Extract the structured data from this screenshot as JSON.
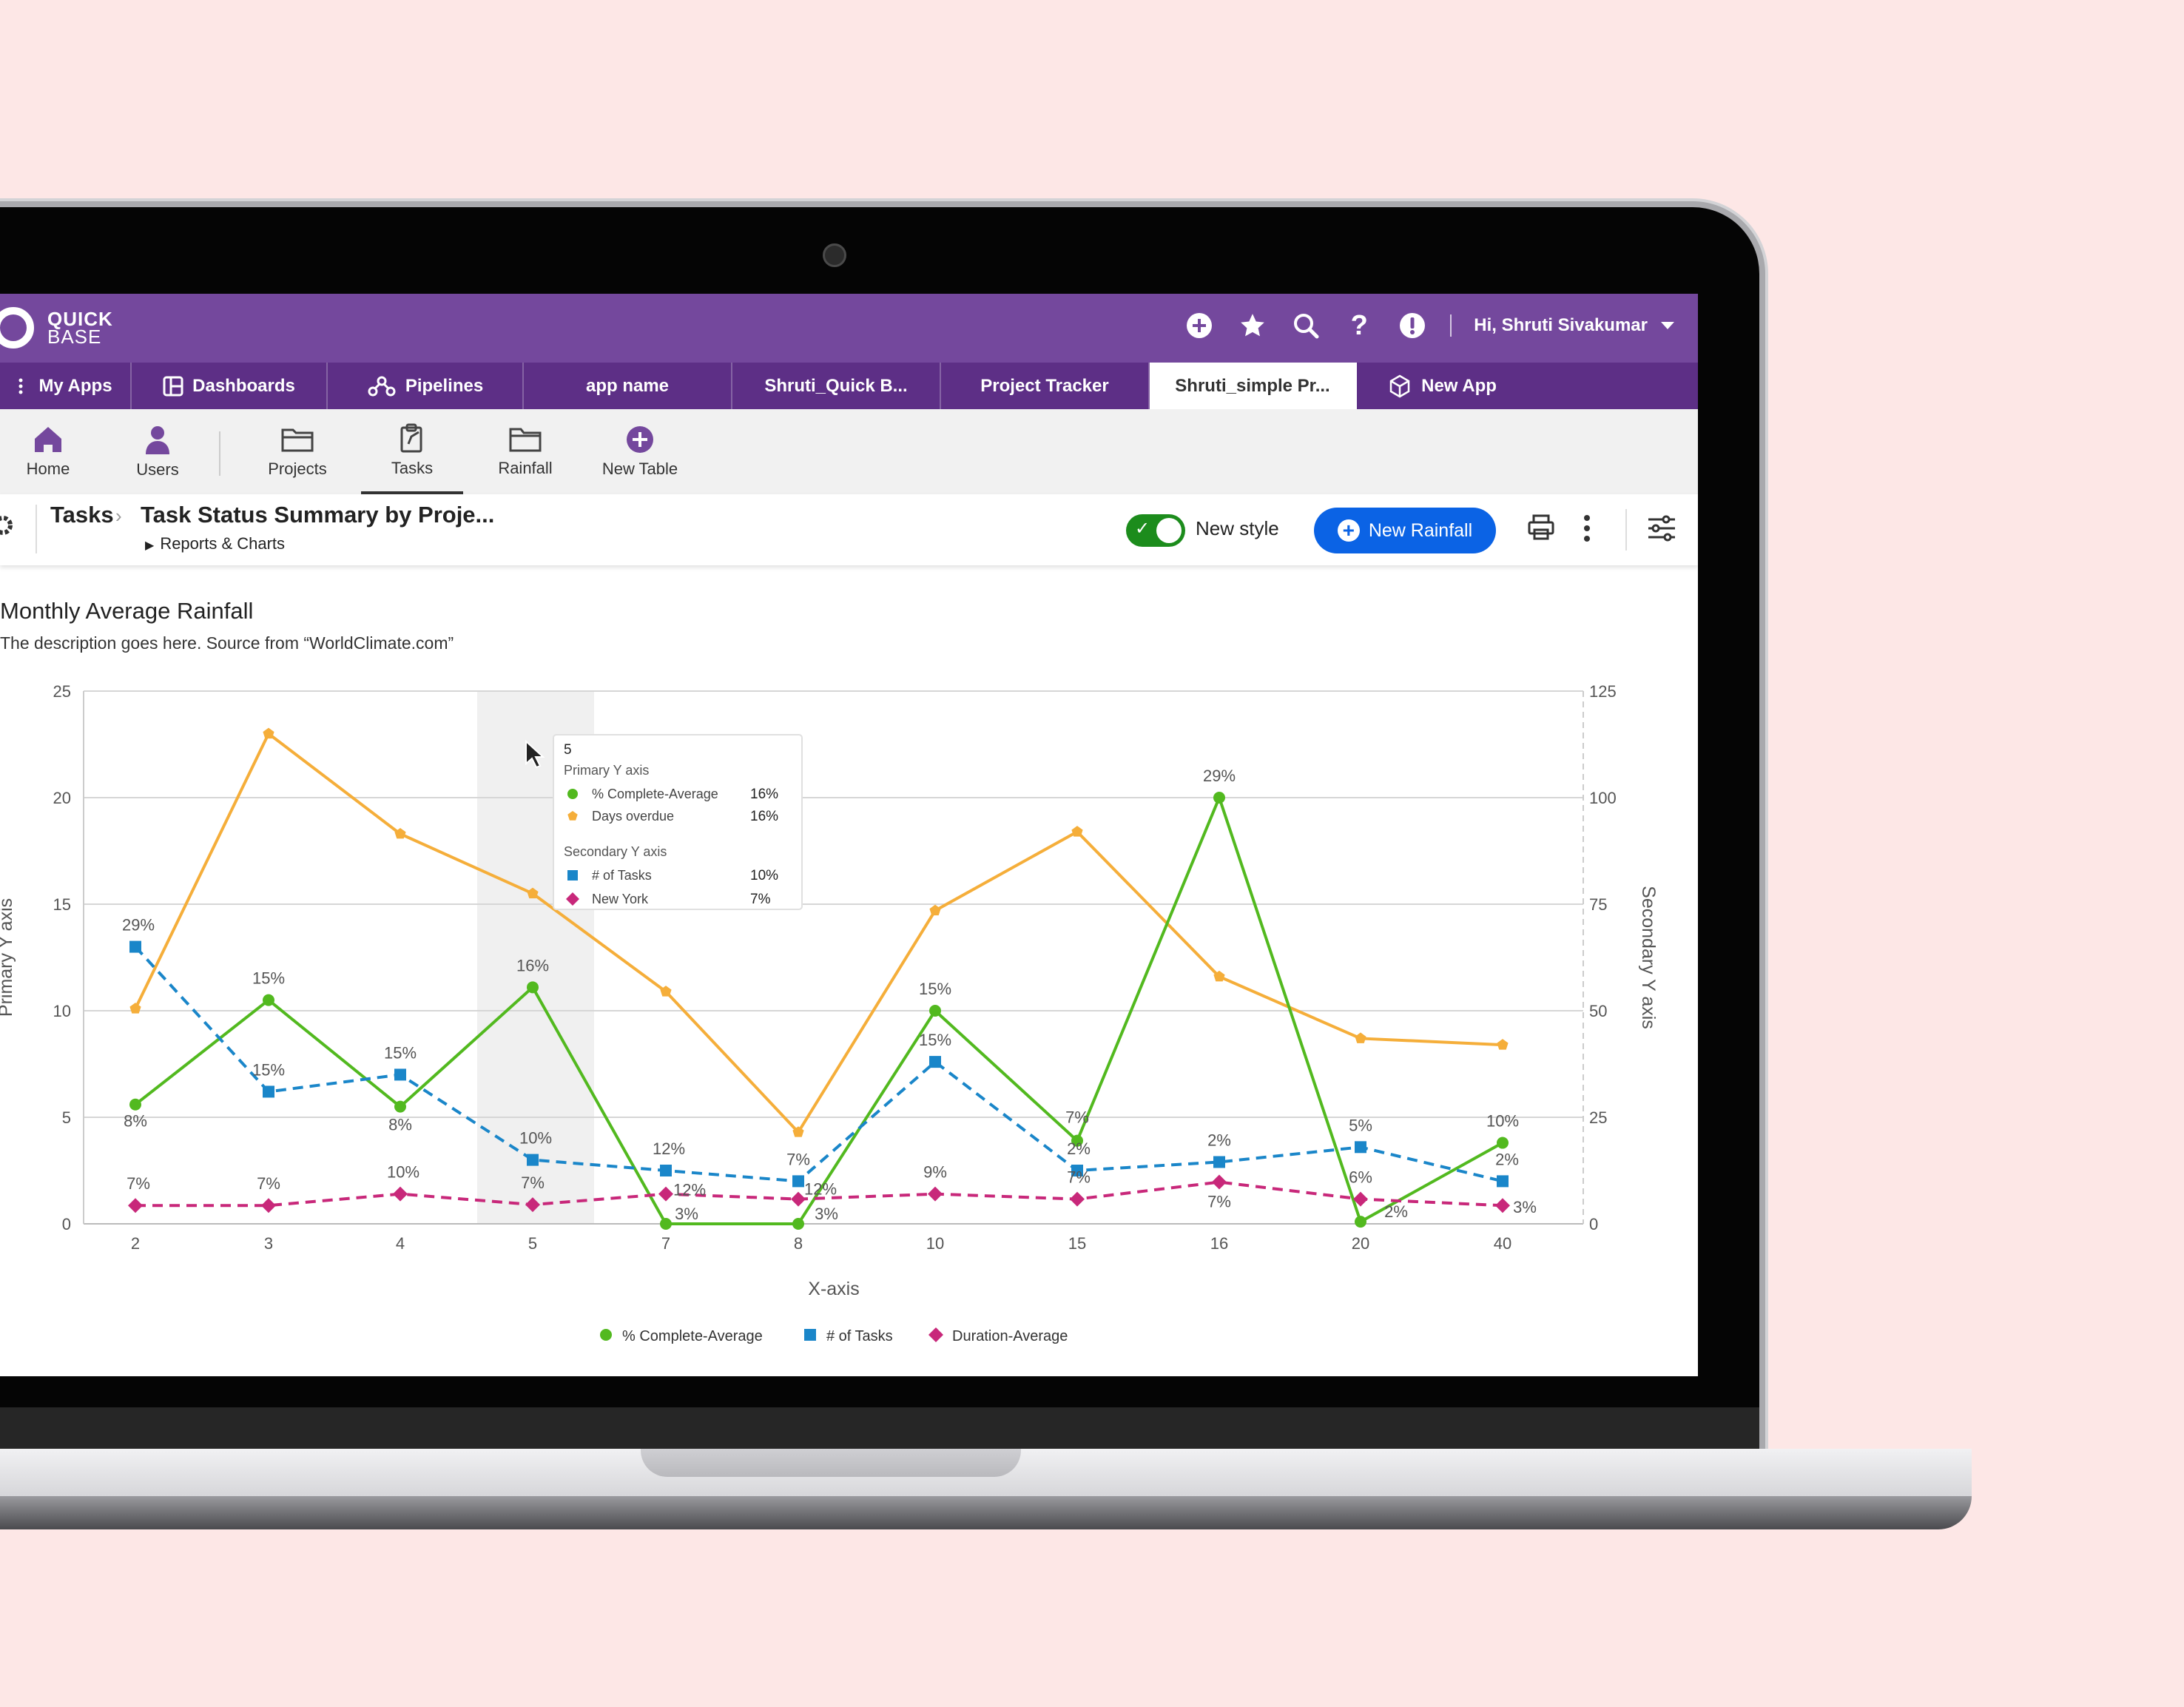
{
  "brand": {
    "line1": "QUICK",
    "line2": "BASE",
    "purple": "#74489d",
    "purple_dark": "#5d2f86"
  },
  "topbar": {
    "icons": [
      "plus-circle-icon",
      "star-icon",
      "search-icon",
      "help-icon",
      "alert-icon"
    ],
    "user_greeting": "Hi, Shruti Sivakumar"
  },
  "app_tabs": [
    {
      "label": "My Apps",
      "icon": "grid-icon"
    },
    {
      "label": "Dashboards",
      "icon": "dashboard-icon"
    },
    {
      "label": "Pipelines",
      "icon": "pipelines-icon"
    },
    {
      "label": "app name"
    },
    {
      "label": "Shruti_Quick B..."
    },
    {
      "label": "Project Tracker"
    },
    {
      "label": "Shruti_simple Pr...",
      "active": true
    },
    {
      "label": "New App",
      "icon": "cube-icon"
    }
  ],
  "tables": [
    {
      "label": "Home",
      "icon": "home-icon"
    },
    {
      "label": "Users",
      "icon": "user-icon"
    },
    {
      "label": "Projects",
      "icon": "folder-open-icon"
    },
    {
      "label": "Tasks",
      "icon": "clipboard-icon",
      "active": true
    },
    {
      "label": "Rainfall",
      "icon": "folder-icon"
    },
    {
      "label": "New Table",
      "icon": "plus-circle-icon"
    }
  ],
  "header": {
    "crumb_table": "Tasks",
    "crumb_report": "Task Status Summary by Proje...",
    "sub": "Reports & Charts",
    "toggle_label": "New style",
    "new_button": "New Rainfall",
    "accent": "#0b63e5",
    "toggle_color": "#1c8c1c"
  },
  "report": {
    "title": "Monthly Average Rainfall",
    "description": "The description goes here. Source from “WorldClimate.com”"
  },
  "tooltip": {
    "title": "5",
    "primary_heading": "Primary Y axis",
    "secondary_heading": "Secondary Y axis",
    "rows_primary": [
      {
        "label": "% Complete-Average",
        "value": "16%",
        "color": "#52b91f",
        "marker": "circle"
      },
      {
        "label": "Days overdue",
        "value": "16%",
        "color": "#f5ae3a",
        "marker": "pentagon"
      }
    ],
    "rows_secondary": [
      {
        "label": "# of Tasks",
        "value": "10%",
        "color": "#1a86c9",
        "marker": "square"
      },
      {
        "label": "New York",
        "value": "7%",
        "color": "#c8287a",
        "marker": "diamond"
      }
    ]
  },
  "chart_data": {
    "type": "line",
    "categories": [
      "2",
      "3",
      "4",
      "5",
      "7",
      "8",
      "10",
      "15",
      "16",
      "20",
      "40"
    ],
    "xlabel": "X-axis",
    "ylabel": "Primary Y axis",
    "y2label": "Secondary Y axis",
    "ylim": [
      0,
      25
    ],
    "y2lim": [
      0,
      125
    ],
    "yticks": [
      0,
      5,
      10,
      15,
      20,
      25
    ],
    "y2ticks": [
      0,
      25,
      50,
      75,
      100,
      125
    ],
    "grid": true,
    "legend_position": "bottom-center",
    "highlight_category": "5",
    "series": [
      {
        "name": "Days overdue",
        "axis": "primary",
        "color": "#f5ae3a",
        "marker": "pentagon",
        "dashed": false,
        "in_legend": false,
        "values": [
          10.1,
          23.0,
          18.3,
          15.5,
          10.9,
          4.3,
          14.7,
          18.4,
          11.6,
          8.7,
          8.4
        ],
        "labels": []
      },
      {
        "name": "% Complete-Average",
        "axis": "primary",
        "color": "#52b91f",
        "marker": "circle",
        "dashed": false,
        "in_legend": true,
        "values": [
          5.6,
          10.5,
          5.5,
          11.1,
          0,
          0,
          10.0,
          3.9,
          20.0,
          0.1,
          3.8
        ],
        "labels": [
          "8%",
          "15%",
          "8%",
          "16%",
          "3%",
          "3%",
          "15%",
          "7%",
          "29%",
          "2%",
          "10%"
        ]
      },
      {
        "name": "# of Tasks",
        "axis": "secondary",
        "color": "#1a86c9",
        "marker": "square",
        "dashed": true,
        "in_legend": true,
        "values": [
          65,
          31,
          35,
          15,
          12.5,
          10,
          38,
          12.5,
          14.5,
          18,
          10
        ],
        "labels": [
          "29%",
          "15%",
          "15%",
          "10%",
          "12%",
          "7%",
          "15%",
          "2%",
          "2%",
          "5%",
          "2%"
        ]
      },
      {
        "name": "Duration-Average",
        "axis": "secondary",
        "color": "#c8287a",
        "marker": "diamond",
        "dashed": true,
        "in_legend": true,
        "values": [
          4.3,
          4.3,
          7,
          4.5,
          7,
          5.8,
          7,
          5.8,
          9.8,
          5.8,
          4.3
        ],
        "labels": [
          "7%",
          "7%",
          "10%",
          "7%",
          "12%",
          "12%",
          "9%",
          "7%",
          "7%",
          "6%",
          "3%"
        ]
      }
    ]
  }
}
